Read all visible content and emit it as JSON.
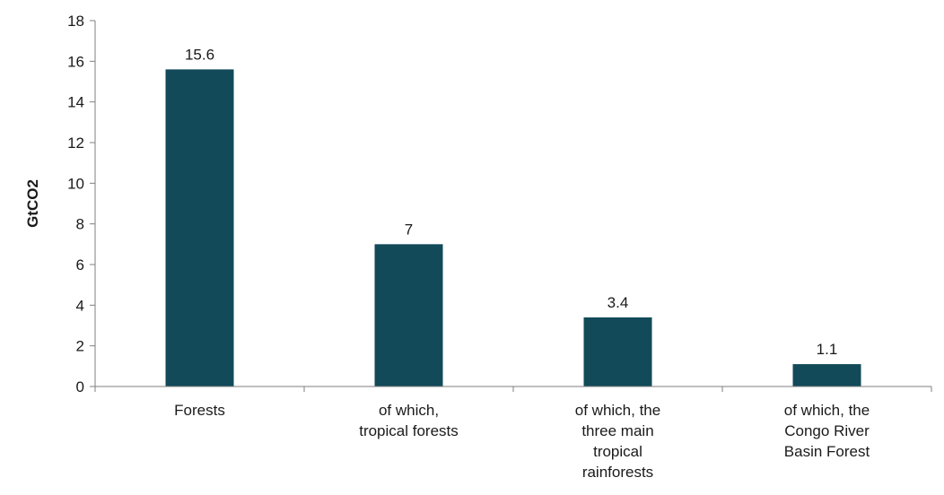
{
  "chart_data": {
    "type": "bar",
    "title": "",
    "xlabel": "",
    "ylabel": "GtCO2",
    "categories": [
      [
        "Forests"
      ],
      [
        "of which,",
        "tropical forests"
      ],
      [
        "of which, the",
        "three main",
        "tropical",
        "rainforests"
      ],
      [
        "of which, the",
        "Congo River",
        "Basin Forest"
      ]
    ],
    "values": [
      15.6,
      7,
      3.4,
      1.1
    ],
    "data_labels": [
      "15.6",
      "7",
      "3.4",
      "1.1"
    ],
    "ylim": [
      0,
      18
    ],
    "yticks": [
      0,
      2,
      4,
      6,
      8,
      10,
      12,
      14,
      16,
      18
    ],
    "grid": false,
    "legend": "none",
    "bar_color": "#124a5a",
    "axis_color": "#7f7f7f"
  }
}
